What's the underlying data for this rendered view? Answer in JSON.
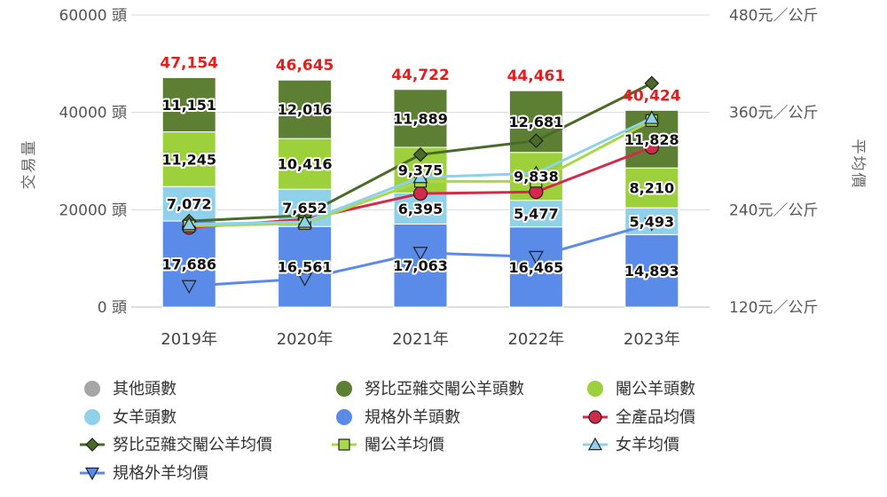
{
  "chart_data": {
    "type": "bar+line",
    "categories": [
      "2019年",
      "2020年",
      "2021年",
      "2022年",
      "2023年"
    ],
    "left_axis": {
      "label": "交易量",
      "unit": "頭",
      "ylim": [
        0,
        60000
      ],
      "ticks": [
        "0 頭",
        "20000 頭",
        "40000 頭",
        "60000 頭"
      ]
    },
    "right_axis": {
      "label": "平均價",
      "ylim": [
        120,
        480
      ],
      "ticks": [
        "120元／公斤",
        "240元／公斤",
        "360元／公斤",
        "480元／公斤"
      ]
    },
    "totals": [
      "47,154",
      "46,645",
      "44,722",
      "44,461",
      "40,424"
    ],
    "totals_color": "#e02020",
    "bar_series": [
      {
        "name": "規格外羊頭數",
        "color": "#5b8be8",
        "values": [
          17686,
          16561,
          17063,
          16465,
          14893
        ],
        "labels": [
          "17,686",
          "16,561",
          "17,063",
          "16,465",
          "14,893"
        ]
      },
      {
        "name": "女羊頭數",
        "color": "#8fd0ea",
        "values": [
          7072,
          7652,
          6395,
          5477,
          5493
        ],
        "labels": [
          "7,072",
          "7,652",
          "6,395",
          "5,477",
          "5,493"
        ]
      },
      {
        "name": "閹公羊頭數",
        "color": "#9cd13b",
        "values": [
          11245,
          10416,
          9375,
          9838,
          8210
        ],
        "labels": [
          "11,245",
          "10,416",
          "9,375",
          "9,838",
          "8,210"
        ]
      },
      {
        "name": "努比亞雜交閹公羊頭數",
        "color": "#5d7f34",
        "values": [
          11151,
          12016,
          11889,
          12681,
          11828
        ],
        "labels": [
          "11,151",
          "12,016",
          "11,889",
          "12,681",
          "11,828"
        ]
      }
    ],
    "line_series": [
      {
        "name": "全產品均價",
        "color": "#d42a4a",
        "marker": "circle",
        "values": [
          218,
          228,
          260,
          262,
          317
        ]
      },
      {
        "name": "努比亞雜交閹公羊均價",
        "color": "#4a6a2a",
        "marker": "diamond",
        "values": [
          226,
          233,
          308,
          325,
          396
        ]
      },
      {
        "name": "閹公羊均價",
        "color": "#a9d94a",
        "marker": "square",
        "values": [
          220,
          223,
          275,
          275,
          350
        ]
      },
      {
        "name": "女羊均價",
        "color": "#8fd0ea",
        "marker": "triangle-up",
        "values": [
          222,
          225,
          280,
          285,
          353
        ]
      },
      {
        "name": "規格外羊均價",
        "color": "#5b8be8",
        "marker": "triangle-down",
        "values": [
          146,
          155,
          187,
          182,
          223
        ]
      }
    ],
    "legend": {
      "placement": "bottom",
      "items": [
        {
          "name": "其他頭數",
          "color": "#a6a6a6",
          "symbol": "dot"
        },
        {
          "name": "努比亞雜交閹公羊頭數",
          "color": "#5d7f34",
          "symbol": "dot"
        },
        {
          "name": "閹公羊頭數",
          "color": "#9cd13b",
          "symbol": "dot"
        },
        {
          "name": "女羊頭數",
          "color": "#8fd0ea",
          "symbol": "dot"
        },
        {
          "name": "規格外羊頭數",
          "color": "#5b8be8",
          "symbol": "dot"
        },
        {
          "name": "全產品均價",
          "color": "#d42a4a",
          "symbol": "line-circle"
        },
        {
          "name": "努比亞雜交閹公羊均價",
          "color": "#4a6a2a",
          "symbol": "line-diamond"
        },
        {
          "name": "閹公羊均價",
          "color": "#a9d94a",
          "symbol": "line-square"
        },
        {
          "name": "女羊均價",
          "color": "#8fd0ea",
          "symbol": "line-triangle-up"
        },
        {
          "name": "規格外羊均價",
          "color": "#5b8be8",
          "symbol": "line-triangle-down"
        }
      ]
    },
    "grid": true
  }
}
